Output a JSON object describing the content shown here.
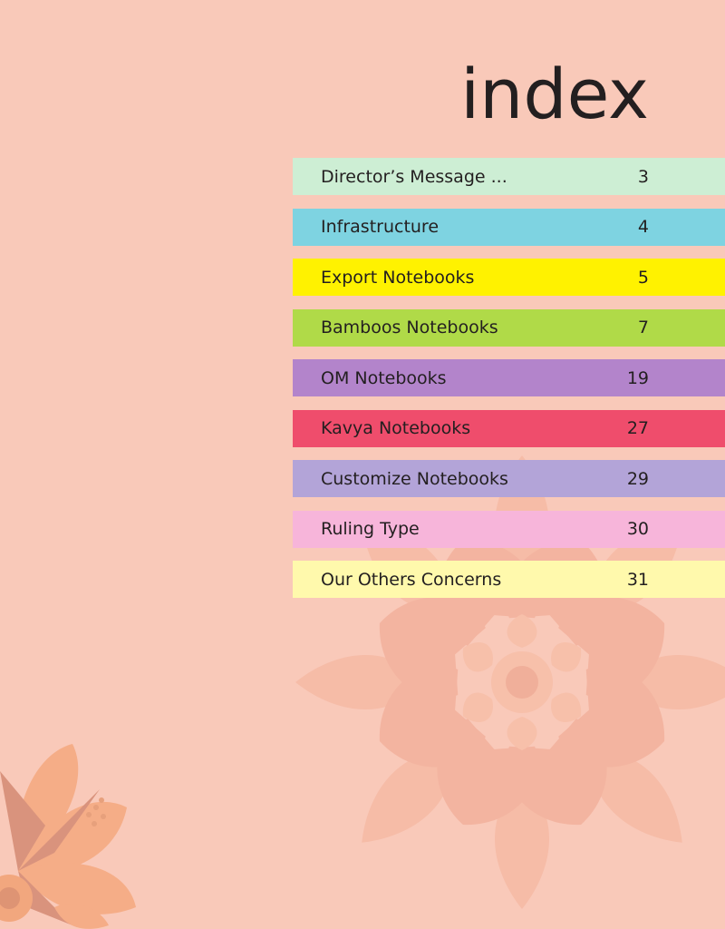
{
  "title": "index",
  "colors": {
    "background": "#f9c9b9",
    "text": "#231f20"
  },
  "toc": [
    {
      "label": "Director’s Message ...",
      "page": "3",
      "color": "#cdeed4"
    },
    {
      "label": "Infrastructure",
      "page": "4",
      "color": "#7ed3e1"
    },
    {
      "label": "Export Notebooks",
      "page": "5",
      "color": "#fff200"
    },
    {
      "label": "Bamboos Notebooks",
      "page": "7",
      "color": "#b0da48"
    },
    {
      "label": "OM Notebooks",
      "page": "19",
      "color": "#b384cb"
    },
    {
      "label": "Kavya Notebooks",
      "page": "27",
      "color": "#ef4d6c"
    },
    {
      "label": "Customize Notebooks",
      "page": "29",
      "color": "#b3a4d8"
    },
    {
      "label": "Ruling Type",
      "page": "30",
      "color": "#f7b5da"
    },
    {
      "label": "Our Others Concerns",
      "page": "31",
      "color": "#fff9ac"
    }
  ]
}
